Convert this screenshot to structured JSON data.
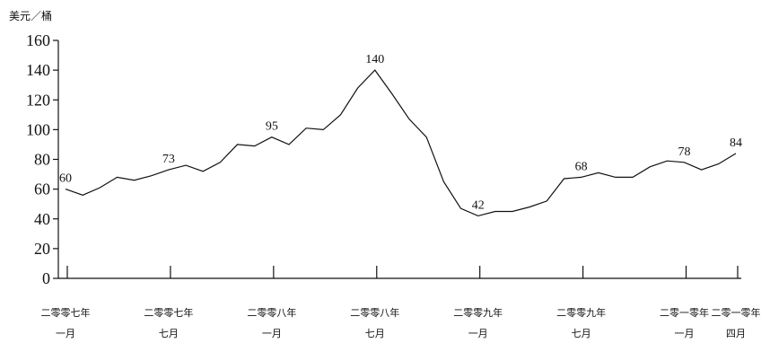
{
  "chart_data": {
    "type": "line",
    "ylabel": "美元／桶",
    "ylim": [
      0,
      160
    ],
    "yticks": [
      0,
      20,
      40,
      60,
      80,
      100,
      120,
      140,
      160
    ],
    "grid": false,
    "x_ticks": [
      {
        "idx": 0,
        "line1": "二零零七年",
        "line2": "一月"
      },
      {
        "idx": 6,
        "line1": "二零零七年",
        "line2": "七月"
      },
      {
        "idx": 12,
        "line1": "二零零八年",
        "line2": "一月"
      },
      {
        "idx": 18,
        "line1": "二零零八年",
        "line2": "七月"
      },
      {
        "idx": 24,
        "line1": "二零零九年",
        "line2": "一月"
      },
      {
        "idx": 30,
        "line1": "二零零九年",
        "line2": "七月"
      },
      {
        "idx": 36,
        "line1": "二零一零年",
        "line2": "一月"
      },
      {
        "idx": 39,
        "line1": "二零一零年",
        "line2": "四月"
      }
    ],
    "values": [
      60,
      56,
      61,
      68,
      66,
      69,
      73,
      76,
      72,
      78,
      90,
      89,
      95,
      90,
      101,
      100,
      110,
      128,
      140,
      124,
      107,
      95,
      65,
      47,
      42,
      45,
      45,
      48,
      52,
      67,
      68,
      71,
      68,
      68,
      75,
      79,
      78,
      73,
      77,
      84
    ],
    "point_labels": [
      {
        "idx": 0,
        "text": "60"
      },
      {
        "idx": 6,
        "text": "73"
      },
      {
        "idx": 12,
        "text": "95"
      },
      {
        "idx": 18,
        "text": "140"
      },
      {
        "idx": 24,
        "text": "42"
      },
      {
        "idx": 30,
        "text": "68"
      },
      {
        "idx": 36,
        "text": "78"
      },
      {
        "idx": 39,
        "text": "84"
      }
    ]
  }
}
